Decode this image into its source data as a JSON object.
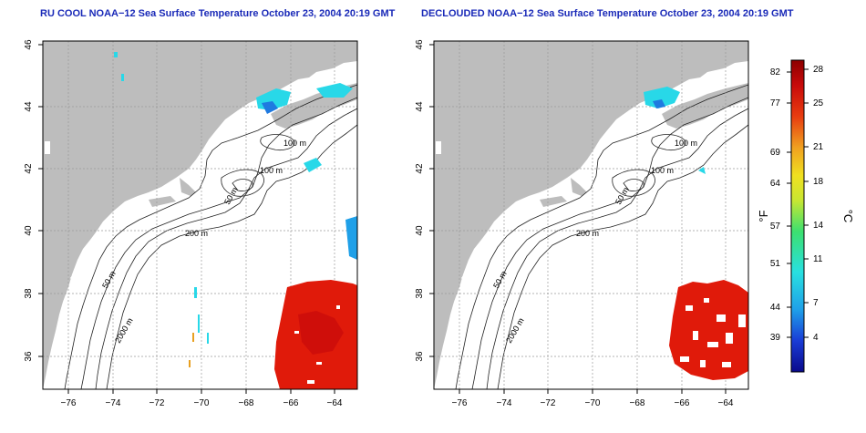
{
  "panels": [
    {
      "title": "RU COOL NOAA−12 Sea Surface Temperature October 23, 2004 20:19 GMT"
    },
    {
      "title": "DECLOUDED NOAA−12 Sea Surface Temperature October 23, 2004 20:19 GMT"
    }
  ],
  "axes": {
    "lon_ticks": [
      "−76",
      "−74",
      "−72",
      "−70",
      "−68",
      "−66",
      "−64"
    ],
    "lat_ticks": [
      "46",
      "44",
      "42",
      "40",
      "38",
      "36"
    ]
  },
  "contour_labels": [
    "100 m",
    "100 m",
    "50 m",
    "200 m",
    "50 m",
    "2000 m"
  ],
  "colorbar": {
    "f_label": "°F",
    "c_label": "°C",
    "f_ticks": [
      "82",
      "77",
      "69",
      "64",
      "57",
      "51",
      "44",
      "39"
    ],
    "c_ticks": [
      "28",
      "25",
      "21",
      "18",
      "14",
      "11",
      "7",
      "4"
    ],
    "colors": [
      "#0a0a8c",
      "#1a3cd6",
      "#1fa0e8",
      "#28e0e0",
      "#3ce070",
      "#c8e632",
      "#f0e020",
      "#f0a020",
      "#e83c10",
      "#c80a0a",
      "#8c0000"
    ]
  },
  "colors": {
    "land": "#bdbdbd",
    "title": "#1a2ab8"
  }
}
